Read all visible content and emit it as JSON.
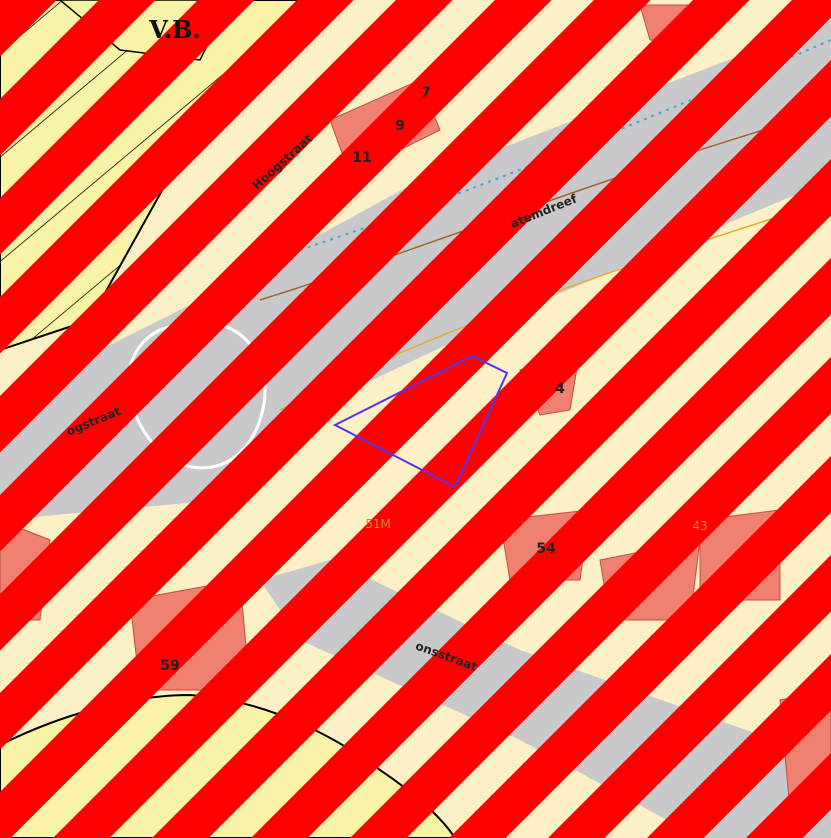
{
  "labels": [
    "V.B.",
    "Hoogstraat",
    "atemdreef",
    "ogstraat",
    "7",
    "9",
    "11",
    "4",
    "51M",
    "54",
    "43",
    "59",
    "onsstraat"
  ]
}
